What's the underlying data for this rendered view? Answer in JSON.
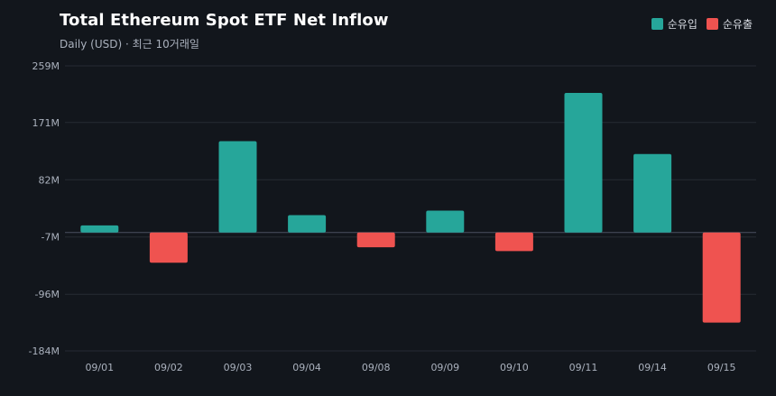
{
  "chart_data": {
    "type": "bar",
    "title": "Total Ethereum Spot ETF Net Inflow",
    "subtitle": "Daily (USD) · 최근 10거래일",
    "categories": [
      "09/01",
      "09/02",
      "09/03",
      "09/04",
      "09/08",
      "09/09",
      "09/10",
      "09/11",
      "09/14",
      "09/15"
    ],
    "values": [
      11,
      -47,
      142,
      27,
      -23,
      34,
      -29,
      217,
      122,
      -140
    ],
    "y_ticks": [
      "259M",
      "171M",
      "82M",
      "-7M",
      "-96M",
      "-184M"
    ],
    "ylim": [
      -184,
      259
    ],
    "legend": [
      {
        "label": "순유입",
        "color": "#26a69a"
      },
      {
        "label": "순유출",
        "color": "#ef5350"
      }
    ],
    "legend_position": "top-right",
    "grid": true,
    "colors": {
      "inflow": "#26a69a",
      "outflow": "#ef5350",
      "background": "#12161c",
      "grid": "#262b33"
    }
  }
}
